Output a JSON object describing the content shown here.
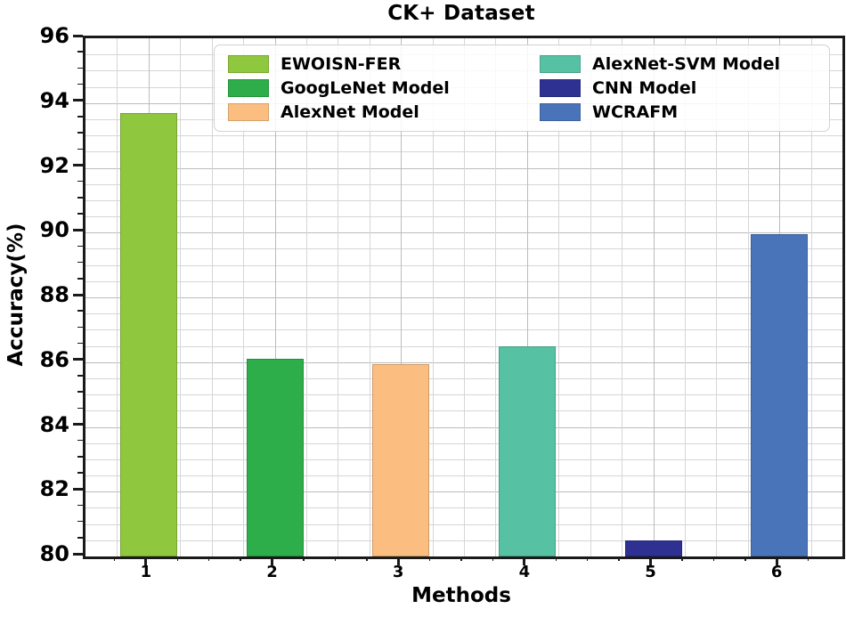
{
  "chart_data": {
    "type": "bar",
    "title": "CK+ Dataset",
    "xlabel": "Methods",
    "ylabel": "Accuracy(%)",
    "categories": [
      "1",
      "2",
      "3",
      "4",
      "5",
      "6"
    ],
    "series": [
      {
        "name": "EWOISN-FER",
        "x": "1",
        "value": 93.7,
        "color": "#8fc73e"
      },
      {
        "name": "GoogLeNet Model",
        "x": "2",
        "value": 86.1,
        "color": "#2ead4b"
      },
      {
        "name": "AlexNet Model",
        "x": "3",
        "value": 85.95,
        "color": "#fbbe80"
      },
      {
        "name": "AlexNet-SVM Model",
        "x": "4",
        "value": 86.5,
        "color": "#56c1a3"
      },
      {
        "name": "CNN Model",
        "x": "5",
        "value": 80.5,
        "color": "#2e3192"
      },
      {
        "name": "WCRAFM",
        "x": "6",
        "value": 89.95,
        "color": "#4a74b9"
      }
    ],
    "legend": {
      "position": "upper center",
      "columns": 2,
      "entries": [
        {
          "label": "EWOISN-FER",
          "color": "#8fc73e"
        },
        {
          "label": "GoogLeNet Model",
          "color": "#2ead4b"
        },
        {
          "label": "AlexNet Model",
          "color": "#fbbe80"
        },
        {
          "label": "AlexNet-SVM Model",
          "color": "#56c1a3"
        },
        {
          "label": "CNN Model",
          "color": "#2e3192"
        },
        {
          "label": "WCRAFM",
          "color": "#4a74b9"
        }
      ]
    },
    "ylim": [
      80,
      96
    ],
    "yticks": [
      80,
      82,
      84,
      86,
      88,
      90,
      92,
      94,
      96
    ],
    "y_minor_step": 0.5,
    "xlim": [
      0.5,
      6.5
    ],
    "x_minor_step": 0.25,
    "grid": "both-major-and-minor",
    "style": {
      "spine_color": "#1a1a1a",
      "grid_minor_color": "#d6d6d6",
      "grid_major_color": "#bcbcbc",
      "background": "#ffffff"
    }
  }
}
